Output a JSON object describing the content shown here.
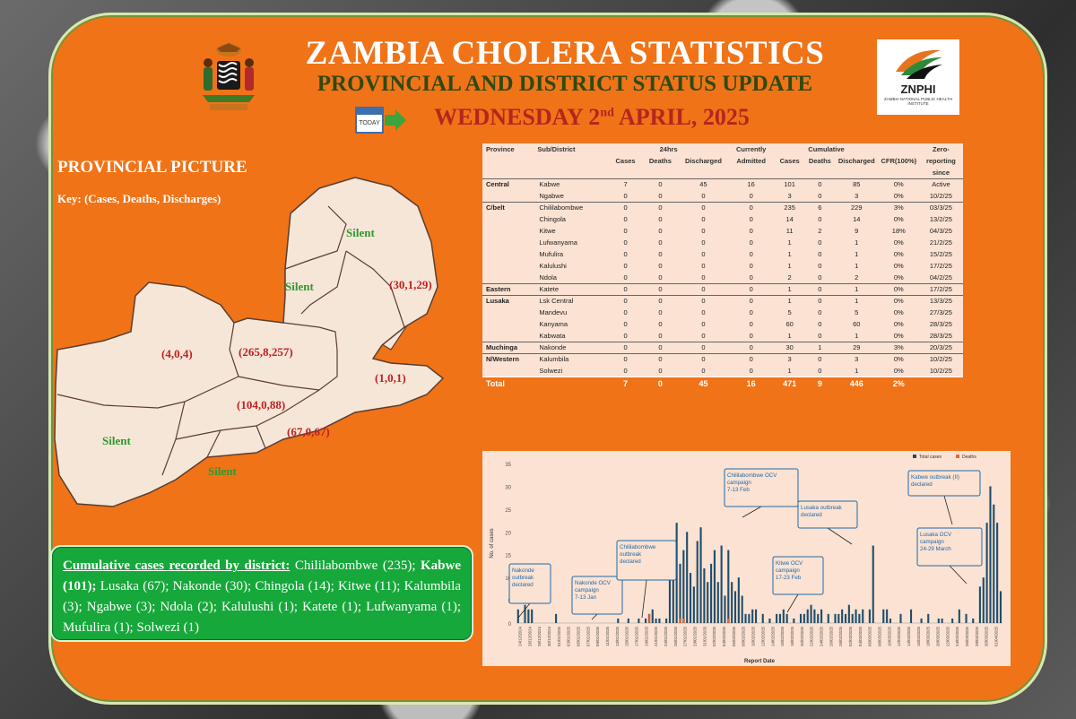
{
  "header": {
    "title": "ZAMBIA CHOLERA STATISTICS",
    "subtitle": "PROVINCIAL AND DISTRICT STATUS UPDATE",
    "date_prefix": "WEDNESDAY 2",
    "date_sup": "nd",
    "date_suffix": " APRIL, 2025",
    "today_icon_label": "TODAY",
    "logo_name": "ZNPHI",
    "logo_sub": "ZAMBIA NATIONAL PUBLIC HEALTH INSTITUTE"
  },
  "map": {
    "title": "PROVINCIAL PICTURE",
    "key": "Key: (Cases, Deaths, Discharges)",
    "labels": {
      "luapula": "Silent",
      "muchinga_silent": "Silent",
      "northern": "(30,1,29)",
      "northwestern": "(4,0,4)",
      "copperbelt": "(265,8,257)",
      "eastern": "(1,0,1)",
      "central": "(104,0,88)",
      "lusaka": "(67,0,67)",
      "western": "Silent",
      "southern": "Silent"
    }
  },
  "table": {
    "headers": {
      "province": "Province",
      "sub_district": "Sub/District",
      "h24": "24hrs",
      "cases": "Cases",
      "deaths": "Deaths",
      "discharged": "Discharged",
      "currently": "Currently",
      "admitted": "Admitted",
      "cumulative": "Cumulative",
      "cum_cases": "Cases",
      "cum_deaths": "Deaths",
      "cum_discharged": "Discharged",
      "cfr": "CFR(100%)",
      "zero": "Zero-",
      "reporting": "reporting",
      "since": "since"
    },
    "rows": [
      {
        "province": "Central",
        "district": "Kabwe",
        "cases": "7",
        "deaths": "0",
        "discharged": "45",
        "admitted": "16",
        "cum_cases": "101",
        "cum_deaths": "0",
        "cum_discharged": "85",
        "cfr": "0%",
        "zero": "Active"
      },
      {
        "province": "",
        "district": "Ngabwe",
        "cases": "0",
        "deaths": "0",
        "discharged": "0",
        "admitted": "0",
        "cum_cases": "3",
        "cum_deaths": "0",
        "cum_discharged": "3",
        "cfr": "0%",
        "zero": "10/2/25"
      },
      {
        "province": "C/belt",
        "district": "Chililabombwe",
        "cases": "0",
        "deaths": "0",
        "discharged": "0",
        "admitted": "0",
        "cum_cases": "235",
        "cum_deaths": "6",
        "cum_discharged": "229",
        "cfr": "3%",
        "zero": "03/3/25"
      },
      {
        "province": "",
        "district": "Chingola",
        "cases": "0",
        "deaths": "0",
        "discharged": "0",
        "admitted": "0",
        "cum_cases": "14",
        "cum_deaths": "0",
        "cum_discharged": "14",
        "cfr": "0%",
        "zero": "13/2/25"
      },
      {
        "province": "",
        "district": "Kitwe",
        "cases": "0",
        "deaths": "0",
        "discharged": "0",
        "admitted": "0",
        "cum_cases": "11",
        "cum_deaths": "2",
        "cum_discharged": "9",
        "cfr": "18%",
        "zero": "04/3/25"
      },
      {
        "province": "",
        "district": "Lufwanyama",
        "cases": "0",
        "deaths": "0",
        "discharged": "0",
        "admitted": "0",
        "cum_cases": "1",
        "cum_deaths": "0",
        "cum_discharged": "1",
        "cfr": "0%",
        "zero": "21/2/25"
      },
      {
        "province": "",
        "district": "Mufulira",
        "cases": "0",
        "deaths": "0",
        "discharged": "0",
        "admitted": "0",
        "cum_cases": "1",
        "cum_deaths": "0",
        "cum_discharged": "1",
        "cfr": "0%",
        "zero": "15/2/25"
      },
      {
        "province": "",
        "district": "Kalulushi",
        "cases": "0",
        "deaths": "0",
        "discharged": "0",
        "admitted": "0",
        "cum_cases": "1",
        "cum_deaths": "0",
        "cum_discharged": "1",
        "cfr": "0%",
        "zero": "17/2/25"
      },
      {
        "province": "",
        "district": "Ndola",
        "cases": "0",
        "deaths": "0",
        "discharged": "0",
        "admitted": "0",
        "cum_cases": "2",
        "cum_deaths": "0",
        "cum_discharged": "2",
        "cfr": "0%",
        "zero": "04/2/25"
      },
      {
        "province": "Eastern",
        "district": "Katete",
        "cases": "0",
        "deaths": "0",
        "discharged": "0",
        "admitted": "0",
        "cum_cases": "1",
        "cum_deaths": "0",
        "cum_discharged": "1",
        "cfr": "0%",
        "zero": "17/2/25"
      },
      {
        "province": "Lusaka",
        "district": "Lsk Central",
        "cases": "0",
        "deaths": "0",
        "discharged": "0",
        "admitted": "0",
        "cum_cases": "1",
        "cum_deaths": "0",
        "cum_discharged": "1",
        "cfr": "0%",
        "zero": "13/3/25"
      },
      {
        "province": "",
        "district": "Mandevu",
        "cases": "0",
        "deaths": "0",
        "discharged": "0",
        "admitted": "0",
        "cum_cases": "5",
        "cum_deaths": "0",
        "cum_discharged": "5",
        "cfr": "0%",
        "zero": "27/3/25"
      },
      {
        "province": "",
        "district": "Kanyama",
        "cases": "0",
        "deaths": "0",
        "discharged": "0",
        "admitted": "0",
        "cum_cases": "60",
        "cum_deaths": "0",
        "cum_discharged": "60",
        "cfr": "0%",
        "zero": "28/3/25"
      },
      {
        "province": "",
        "district": "Kabwata",
        "cases": "0",
        "deaths": "0",
        "discharged": "0",
        "admitted": "0",
        "cum_cases": "1",
        "cum_deaths": "0",
        "cum_discharged": "1",
        "cfr": "0%",
        "zero": "28/3/25"
      },
      {
        "province": "Muchinga",
        "district": "Nakonde",
        "cases": "0",
        "deaths": "0",
        "discharged": "0",
        "admitted": "0",
        "cum_cases": "30",
        "cum_deaths": "1",
        "cum_discharged": "29",
        "cfr": "3%",
        "zero": "20/3/25"
      },
      {
        "province": "N/Western",
        "district": "Kalumbila",
        "cases": "0",
        "deaths": "0",
        "discharged": "0",
        "admitted": "0",
        "cum_cases": "3",
        "cum_deaths": "0",
        "cum_discharged": "3",
        "cfr": "0%",
        "zero": "10/2/25"
      },
      {
        "province": "",
        "district": "Solwezi",
        "cases": "0",
        "deaths": "0",
        "discharged": "0",
        "admitted": "0",
        "cum_cases": "1",
        "cum_deaths": "0",
        "cum_discharged": "1",
        "cfr": "0%",
        "zero": "10/2/25"
      }
    ],
    "total": {
      "label": "Total",
      "cases": "7",
      "deaths": "0",
      "discharged": "45",
      "admitted": "16",
      "cum_cases": "471",
      "cum_deaths": "9",
      "cum_discharged": "446",
      "cfr": "2%"
    }
  },
  "cumulative_box": {
    "heading": "Cumulative cases recorded by district:",
    "part1": " Chililabombwe (235); ",
    "bold": "Kabwe (101);",
    "part2": " Lusaka (67); Nakonde (30); Chingola (14); Kitwe (11); Kalumbila (3); Ngabwe (3); Ndola (2); Kalulushi (1); Katete (1); Lufwanyama (1); Mufulira (1); Solwezi (1)"
  },
  "chart_data": {
    "type": "bar",
    "xlabel": "Report Date",
    "ylabel": "No. of cases",
    "ylim": [
      0,
      35
    ],
    "yticks": [
      0,
      5,
      10,
      15,
      20,
      25,
      30,
      35
    ],
    "legend_position": "top-right",
    "colors": {
      "total": "#1f4e6b",
      "deaths": "#e0673a"
    },
    "series": [
      {
        "name": "Total cases",
        "values": [
          3,
          0,
          4,
          3,
          3,
          0,
          0,
          0,
          0,
          0,
          0,
          2,
          0,
          0,
          0,
          0,
          0,
          0,
          0,
          0,
          0,
          0,
          0,
          0,
          0,
          0,
          0,
          0,
          0,
          1,
          0,
          0,
          1,
          0,
          0,
          1,
          0,
          1,
          2,
          3,
          1,
          1,
          0,
          1,
          14,
          10,
          22,
          13,
          16,
          20,
          11,
          8,
          18,
          21,
          12,
          9,
          13,
          16,
          9,
          17,
          6,
          16,
          9,
          7,
          10,
          6,
          2,
          2,
          3,
          3,
          0,
          2,
          0,
          1,
          0,
          2,
          2,
          3,
          2,
          0,
          1,
          0,
          2,
          2,
          3,
          4,
          3,
          2,
          3,
          0,
          2,
          0,
          2,
          2,
          3,
          2,
          4,
          2,
          3,
          2,
          3,
          0,
          3,
          17,
          0,
          0,
          3,
          3,
          1,
          0,
          0,
          2,
          0,
          0,
          3,
          0,
          0,
          1,
          0,
          2,
          0,
          0,
          1,
          1,
          0,
          0,
          1,
          0,
          3,
          0,
          2,
          0,
          1,
          0,
          8,
          10,
          22,
          30,
          26,
          22,
          7
        ]
      },
      {
        "name": "Deaths",
        "values": [
          0,
          0,
          0,
          0,
          0,
          0,
          0,
          0,
          0,
          0,
          0,
          0,
          0,
          0,
          0,
          0,
          0,
          0,
          0,
          0,
          0,
          0,
          0,
          0,
          0,
          0,
          0,
          0,
          0,
          0,
          0,
          0,
          0,
          0,
          0,
          0,
          0,
          0,
          2,
          0,
          0,
          0,
          0,
          0,
          0,
          0,
          0,
          1,
          1,
          0,
          0,
          0,
          0,
          0,
          0,
          0,
          0,
          0,
          0,
          0,
          0,
          1,
          0,
          0,
          0,
          0,
          0,
          0,
          0,
          0,
          0,
          0,
          0,
          0,
          0,
          0,
          0,
          0,
          0,
          0,
          0,
          0,
          0,
          0,
          0,
          0,
          0,
          0,
          0,
          0,
          0,
          0,
          0,
          0,
          0,
          0,
          0,
          0,
          0,
          0,
          0,
          0,
          0,
          0,
          0,
          0,
          0,
          0,
          0,
          0,
          0,
          0,
          0,
          0,
          0,
          0,
          0,
          0,
          0,
          0,
          0,
          0,
          0,
          0,
          0,
          0,
          0,
          0,
          0,
          0,
          0,
          0,
          0,
          0,
          0,
          0,
          0,
          0,
          0,
          0,
          0
        ]
      }
    ],
    "date_labels": [
      "24/12/2024",
      "26/12/2024",
      "28/12/2024",
      "30/12/2024",
      "01/01/2025",
      "03/01/2025",
      "05/01/2025",
      "07/01/2025",
      "09/01/2025",
      "11/01/2025",
      "13/01/2025",
      "15/01/2025",
      "17/01/2025",
      "19/01/2025",
      "21/01/2025",
      "23/01/2025",
      "25/01/2025",
      "27/01/2025",
      "29/01/2025",
      "31/01/2025",
      "02/02/2025",
      "04/02/2025",
      "06/02/2025",
      "08/02/2025",
      "10/02/2025",
      "12/02/2025",
      "14/02/2025",
      "16/02/2025",
      "18/02/2025",
      "20/02/2025",
      "22/02/2025",
      "24/02/2025",
      "26/02/2025",
      "28/02/2025",
      "02/03/2025",
      "04/03/2025",
      "06/03/2025",
      "08/03/2025",
      "10/03/2025",
      "12/03/2025",
      "14/03/2025",
      "16/03/2025",
      "18/03/2025",
      "20/03/2025",
      "22/03/2025",
      "24/03/2025",
      "26/03/2025",
      "28/03/2025",
      "30/03/2025",
      "01/04/2025"
    ],
    "annotations": [
      {
        "lines": [
          "Nakonde",
          "outbreak",
          "declared"
        ]
      },
      {
        "lines": [
          "Nakonde OCV",
          "campaign",
          "7-13 Jan"
        ]
      },
      {
        "lines": [
          "Chililabombwe",
          "outbreak",
          "declared"
        ]
      },
      {
        "lines": [
          "Chililabombwe OCV",
          "campaign",
          "7-13 Feb"
        ]
      },
      {
        "lines": [
          "Kitwe OCV",
          "campaign",
          "17-23 Feb"
        ]
      },
      {
        "lines": [
          "Lusaka outbreak",
          "declared"
        ]
      },
      {
        "lines": [
          "Kabwe outbreak (II)",
          "declared"
        ]
      },
      {
        "lines": [
          "Lusaka OCV",
          "campaign",
          "24-29 March"
        ]
      }
    ]
  }
}
